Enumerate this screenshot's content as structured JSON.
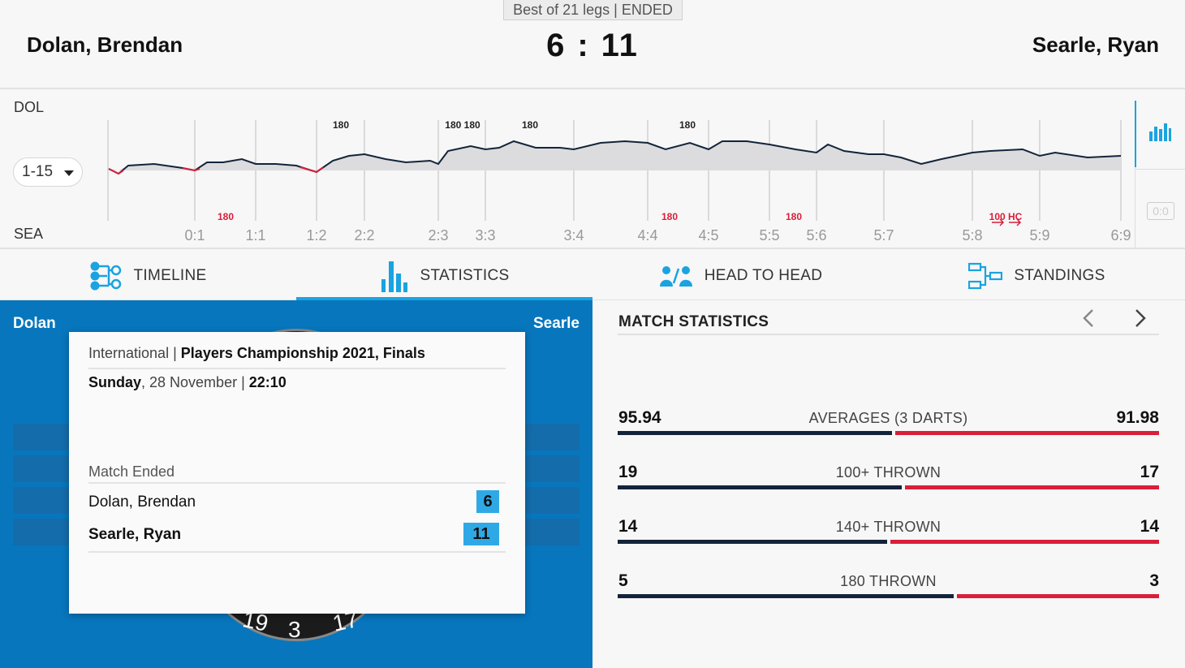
{
  "header": {
    "format": "Best of 21 legs | ENDED",
    "home_player": "Dolan, Brendan",
    "away_player": "Searle, Ryan",
    "home_score": "6",
    "score_separator": ":",
    "away_score": "11"
  },
  "graph": {
    "home_code": "DOL",
    "away_code": "SEA",
    "range": "1-15",
    "leg_labels": [
      "0:1",
      "1:1",
      "1:2",
      "2:2",
      "2:3",
      "3:3",
      "3:4",
      "4:4",
      "4:5",
      "5:5",
      "5:6",
      "5:7",
      "5:8",
      "5:9",
      "6:9"
    ],
    "home_markers": [
      "180",
      "180 180",
      "180",
      "180"
    ],
    "away_markers": [
      "180",
      "180",
      "180",
      "100 HC"
    ],
    "zero_icon": "0:0",
    "colors": {
      "home": "#13243a",
      "away": "#d91f3a",
      "accent": "#1aa3e0"
    }
  },
  "tabs": [
    {
      "label": "TIMELINE",
      "icon": "timeline-icon",
      "active": false
    },
    {
      "label": "STATISTICS",
      "icon": "bar-chart-icon",
      "active": true
    },
    {
      "label": "HEAD TO HEAD",
      "icon": "head-to-head-icon",
      "active": false
    },
    {
      "label": "STANDINGS",
      "icon": "bracket-icon",
      "active": false
    }
  ],
  "left_panel": {
    "home_short": "Dolan",
    "away_short": "Searle",
    "board_numbers": [
      "19",
      "3",
      "17"
    ],
    "card": {
      "category": "International",
      "separator": "|",
      "tournament": "Players Championship 2021, Finals",
      "weekday": "Sunday",
      "date": ", 28 November | ",
      "time": "22:10",
      "status": "Match Ended",
      "players": [
        {
          "name": "Dolan, Brendan",
          "score": "6",
          "bold": false
        },
        {
          "name": "Searle, Ryan",
          "score": "11",
          "bold": true
        }
      ]
    }
  },
  "match_statistics": {
    "title": "MATCH STATISTICS",
    "rows": [
      {
        "label": "AVERAGES (3 DARTS)",
        "home": "95.94",
        "away": "91.98",
        "home_value": 95.94,
        "away_value": 91.98
      },
      {
        "label": "100+ THROWN",
        "home": "19",
        "away": "17",
        "home_value": 19,
        "away_value": 17
      },
      {
        "label": "140+ THROWN",
        "home": "14",
        "away": "14",
        "home_value": 14,
        "away_value": 14
      },
      {
        "label": "180 THROWN",
        "home": "5",
        "away": "3",
        "home_value": 5,
        "away_value": 3
      }
    ]
  }
}
